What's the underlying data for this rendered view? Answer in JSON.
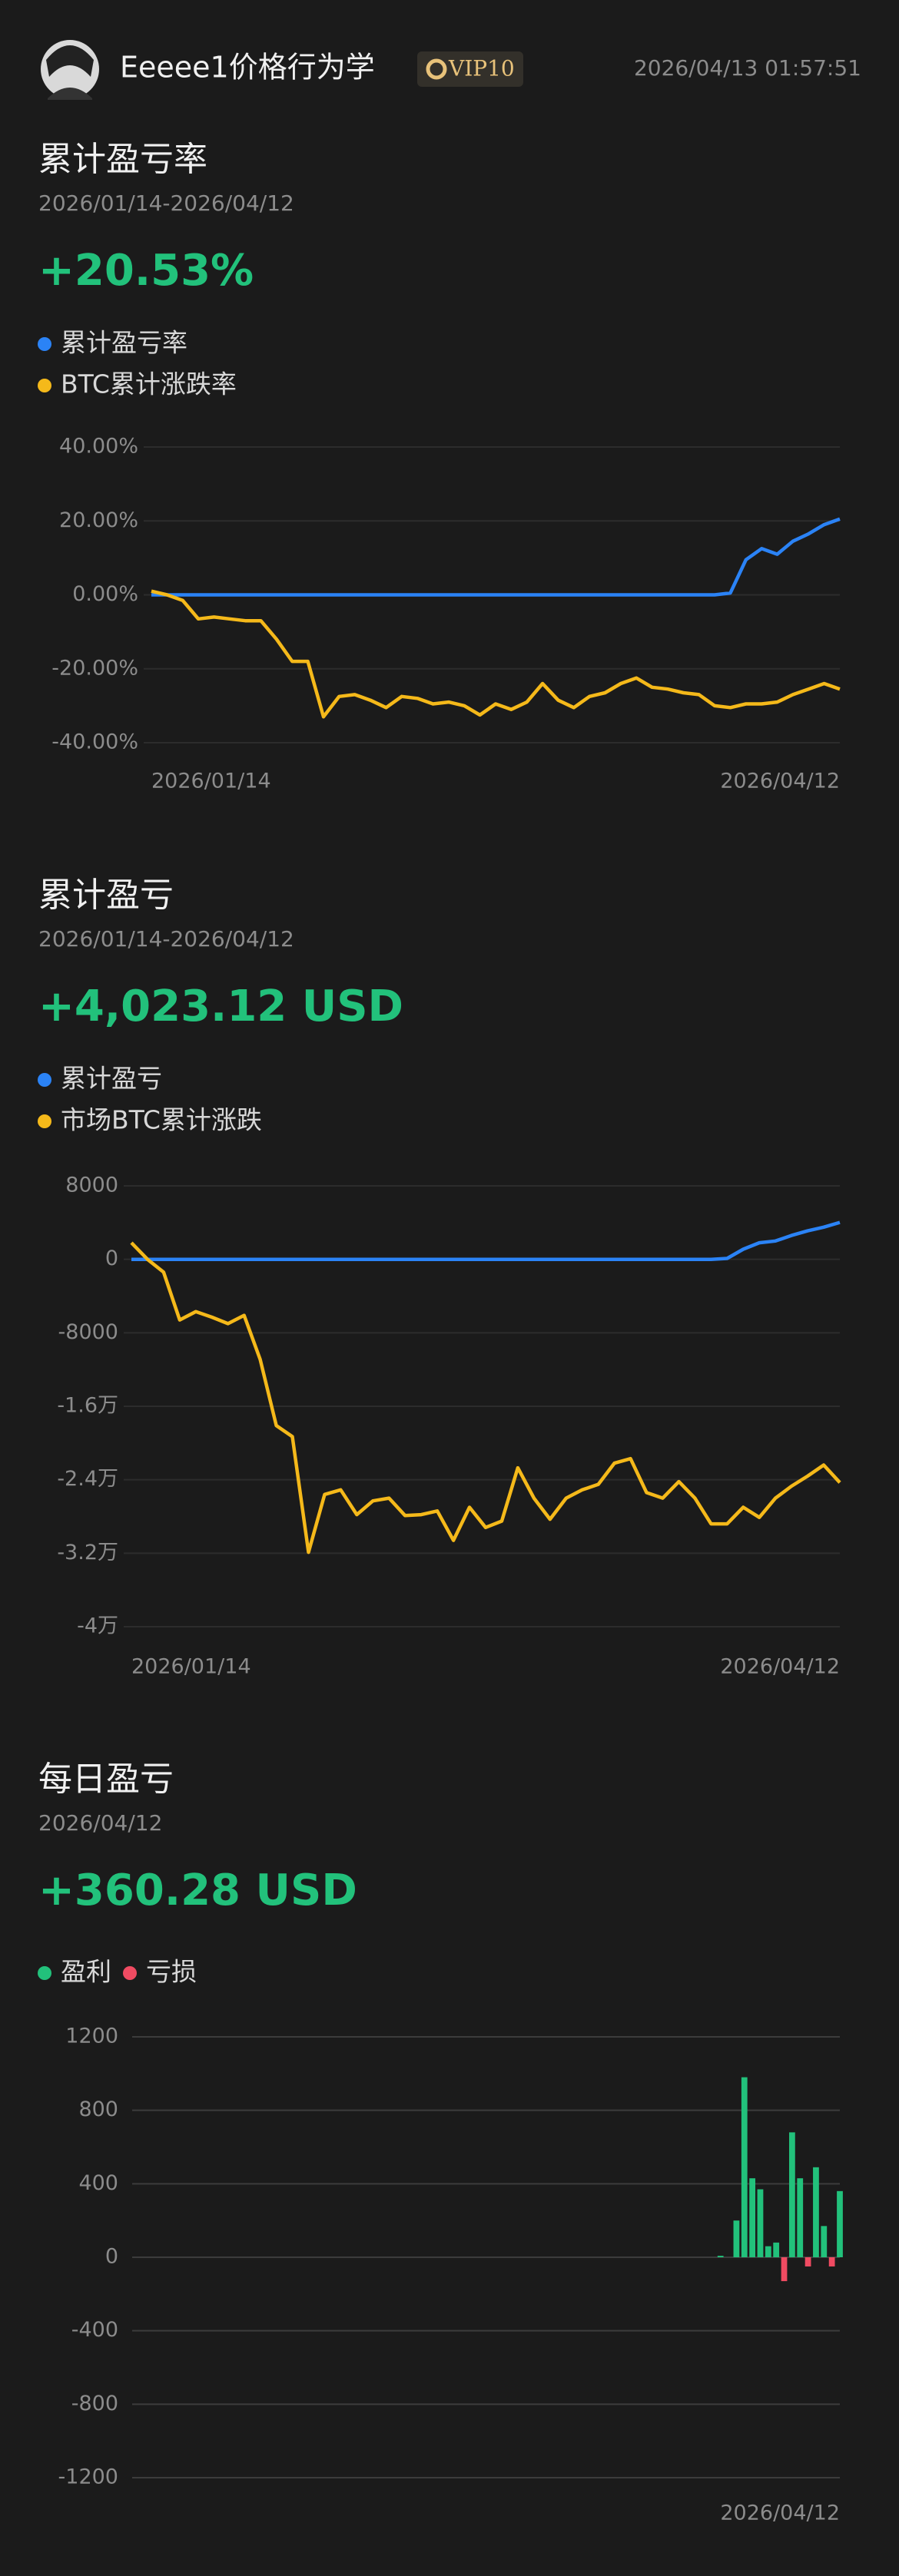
{
  "header": {
    "username": "Eeeee1价格行为学",
    "badge": "VIP10",
    "timestamp": "2026/04/13 01:57:51"
  },
  "chart_data": [
    {
      "type": "line",
      "title": "累计盈亏率",
      "subtitle": "2026/01/14-2026/04/12",
      "summary": "+20.53%",
      "categories": [
        "2026/01/14",
        null,
        null,
        null,
        null,
        null,
        null,
        null,
        null,
        null,
        null,
        null,
        null,
        null,
        null,
        null,
        null,
        null,
        null,
        null,
        null,
        null,
        null,
        null,
        null,
        null,
        null,
        null,
        null,
        null,
        null,
        null,
        null,
        null,
        null,
        null,
        null,
        null,
        null,
        null,
        null,
        null,
        null,
        null,
        "2026/04/12"
      ],
      "series": [
        {
          "name": "累计盈亏率",
          "color": "#2b83f6",
          "values": [
            0,
            0,
            0,
            0,
            0,
            0,
            0,
            0,
            0,
            0,
            0,
            0,
            0,
            0,
            0,
            0,
            0,
            0,
            0,
            0,
            0,
            0,
            0,
            0,
            0,
            0,
            0,
            0,
            0,
            0,
            0,
            0,
            0,
            0,
            0,
            0,
            0,
            0.5,
            9.5,
            12.5,
            11,
            14.5,
            16.5,
            19,
            20.53
          ]
        },
        {
          "name": "BTC累计涨跌率",
          "color": "#f5b91a",
          "values": [
            1,
            0,
            -1.5,
            -6.5,
            -6,
            -6.5,
            -7,
            -7,
            -12,
            -18,
            -18,
            -33,
            -27.5,
            -27,
            -28.5,
            -30.5,
            -27.5,
            -28,
            -29.5,
            -29,
            -30,
            -32.5,
            -29.5,
            -31,
            -29,
            -24,
            -28.5,
            -30.5,
            -27.5,
            -26.5,
            -24,
            -22.5,
            -25,
            -25.5,
            -26.5,
            -27,
            -30,
            -30.5,
            -29.5,
            -29.5,
            -29,
            -27,
            -25.5,
            -24,
            -25.5
          ]
        }
      ],
      "ylim": [
        -40,
        40
      ],
      "yticks": [
        {
          "value": 40,
          "label": "40.00%"
        },
        {
          "value": 20,
          "label": "20.00%"
        },
        {
          "value": 0,
          "label": "0.00%"
        },
        {
          "value": -20,
          "label": "-20.00%"
        },
        {
          "value": -40,
          "label": "-40.00%"
        }
      ],
      "grid": true
    },
    {
      "type": "line",
      "title": "累计盈亏",
      "subtitle": "2026/01/14-2026/04/12",
      "summary": "+4,023.12 USD",
      "categories": [
        "2026/01/14",
        null,
        null,
        null,
        null,
        null,
        null,
        null,
        null,
        null,
        null,
        null,
        null,
        null,
        null,
        null,
        null,
        null,
        null,
        null,
        null,
        null,
        null,
        null,
        null,
        null,
        null,
        null,
        null,
        null,
        null,
        null,
        null,
        null,
        null,
        null,
        null,
        null,
        null,
        null,
        null,
        null,
        null,
        null,
        "2026/04/12"
      ],
      "series": [
        {
          "name": "累计盈亏",
          "color": "#2b83f6",
          "values": [
            0,
            0,
            0,
            0,
            0,
            0,
            0,
            0,
            0,
            0,
            0,
            0,
            0,
            0,
            0,
            0,
            0,
            0,
            0,
            0,
            0,
            0,
            0,
            0,
            0,
            0,
            0,
            0,
            0,
            0,
            0,
            0,
            0,
            0,
            0,
            0,
            0,
            100,
            1100,
            1800,
            2000,
            2600,
            3100,
            3500,
            4023.12
          ]
        },
        {
          "name": "市场BTC累计涨跌",
          "color": "#f5b91a",
          "values": [
            1800,
            0,
            -1400,
            -6600,
            -5700,
            -6300,
            -7000,
            -6100,
            -10900,
            -18100,
            -19300,
            -31900,
            -25600,
            -25100,
            -27800,
            -26300,
            -26000,
            -27900,
            -27800,
            -27400,
            -30600,
            -27000,
            -29200,
            -28500,
            -22700,
            -26000,
            -28300,
            -26000,
            -25100,
            -24500,
            -22200,
            -21700,
            -25400,
            -26000,
            -24200,
            -26000,
            -28800,
            -28800,
            -27000,
            -28100,
            -26000,
            -24700,
            -23600,
            -22400,
            -24300
          ]
        }
      ],
      "ylim": [
        -40000,
        8000
      ],
      "yticks": [
        8000,
        0,
        -8000,
        {
          "value": -16000,
          "label": "-1.6万"
        },
        {
          "value": -24000,
          "label": "-2.4万"
        },
        {
          "value": -32000,
          "label": "-3.2万"
        },
        {
          "value": -40000,
          "label": "-4万"
        }
      ],
      "grid": true
    },
    {
      "type": "bar",
      "title": "每日盈亏",
      "subtitle": "2026/04/12",
      "summary": "+360.28 USD",
      "legend": [
        {
          "name": "盈利",
          "color": "#22c17b"
        },
        {
          "name": "亏损",
          "color": "#f04b62"
        }
      ],
      "categories": [
        null,
        null,
        null,
        null,
        null,
        null,
        null,
        null,
        null,
        null,
        null,
        null,
        null,
        null,
        null,
        null,
        null,
        null,
        null,
        null,
        null,
        null,
        null,
        null,
        null,
        null,
        null,
        null,
        null,
        null,
        null,
        null,
        null,
        null,
        null,
        null,
        null,
        null,
        null,
        null,
        null,
        null,
        null,
        null,
        null,
        null,
        null,
        null,
        null,
        null,
        null,
        null,
        null,
        null,
        null,
        null,
        null,
        null,
        null,
        null,
        null,
        null,
        null,
        null,
        null,
        null,
        null,
        null,
        null,
        null,
        null,
        null,
        null,
        null,
        null,
        null,
        null,
        null,
        null,
        null,
        null,
        null,
        null,
        null,
        null,
        null,
        null,
        null,
        "2026/04/12"
      ],
      "values": [
        0,
        0,
        0,
        0,
        0,
        0,
        0,
        0,
        0,
        0,
        0,
        0,
        0,
        0,
        0,
        0,
        0,
        0,
        0,
        0,
        0,
        0,
        0,
        0,
        0,
        0,
        0,
        0,
        0,
        0,
        0,
        0,
        0,
        0,
        0,
        0,
        0,
        0,
        0,
        0,
        0,
        0,
        0,
        0,
        0,
        0,
        0,
        0,
        0,
        0,
        0,
        0,
        0,
        0,
        0,
        0,
        0,
        0,
        0,
        0,
        0,
        0,
        0,
        0,
        0,
        0,
        0,
        0,
        0,
        0,
        0,
        0,
        0,
        8,
        0,
        200,
        980,
        430,
        370,
        60,
        80,
        -130,
        680,
        430,
        -50,
        490,
        170,
        -50,
        360.28
      ],
      "ylim": [
        -1200,
        1200
      ],
      "yticks": [
        1200,
        800,
        400,
        0,
        -400,
        -800,
        -1200
      ],
      "grid": true
    }
  ]
}
